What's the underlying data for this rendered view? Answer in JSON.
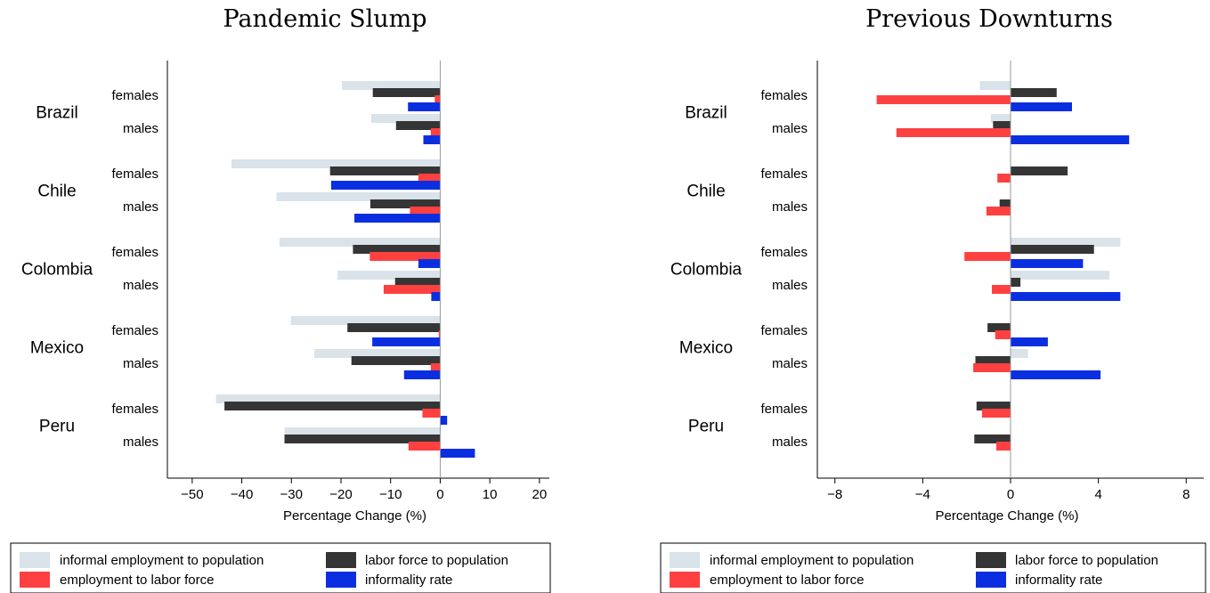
{
  "colors": {
    "informal_employment_to_population": "#d9e3e9",
    "labor_force_to_population": "#353535",
    "employment_to_labor_force": "#ff4040",
    "informality_rate": "#0b2fe0"
  },
  "chart_data": [
    {
      "type": "bar",
      "orientation": "horizontal",
      "title": "Pandemic Slump",
      "xlabel": "Percentage Change (%)",
      "xlim": [
        -55,
        22
      ],
      "xticks": [
        -50,
        -40,
        -30,
        -20,
        -10,
        0,
        10,
        20
      ],
      "tick_labels": [
        "−50",
        "−40",
        "−30",
        "−20",
        "−10",
        "0",
        "10",
        "20"
      ],
      "groups": [
        {
          "country": "Brazil",
          "rows": [
            {
              "label": "females",
              "values": [
                -19.8,
                -13.6,
                -1.1,
                -6.5
              ]
            },
            {
              "label": "males",
              "values": [
                -13.9,
                -8.9,
                -1.9,
                -3.4
              ]
            }
          ]
        },
        {
          "country": "Chile",
          "rows": [
            {
              "label": "females",
              "values": [
                -42.1,
                -22.2,
                -4.4,
                -22.0
              ]
            },
            {
              "label": "males",
              "values": [
                -33.0,
                -14.1,
                -6.1,
                -17.3
              ]
            }
          ]
        },
        {
          "country": "Colombia",
          "rows": [
            {
              "label": "females",
              "values": [
                -32.4,
                -17.6,
                -14.2,
                -4.4
              ]
            },
            {
              "label": "males",
              "values": [
                -20.7,
                -9.1,
                -11.4,
                -1.8
              ]
            }
          ]
        },
        {
          "country": "Mexico",
          "rows": [
            {
              "label": "females",
              "values": [
                -30.1,
                -18.7,
                -0.3,
                -13.7
              ]
            },
            {
              "label": "males",
              "values": [
                -25.4,
                -17.9,
                -1.9,
                -7.3
              ]
            }
          ]
        },
        {
          "country": "Peru",
          "rows": [
            {
              "label": "females",
              "values": [
                -45.2,
                -43.5,
                -3.6,
                1.4
              ]
            },
            {
              "label": "males",
              "values": [
                -31.4,
                -31.4,
                -6.4,
                7.0
              ]
            }
          ]
        }
      ],
      "series": [
        {
          "name": "informal employment to population"
        },
        {
          "name": "labor force to population"
        },
        {
          "name": "employment to labor force"
        },
        {
          "name": "informality rate"
        }
      ]
    },
    {
      "type": "bar",
      "orientation": "horizontal",
      "title": "Previous Downturns",
      "xlabel": "Percentage Change (%)",
      "xlim": [
        -8.8,
        8.8
      ],
      "xticks": [
        -8,
        -4,
        0,
        4,
        8
      ],
      "tick_labels": [
        "−8",
        "−4",
        "0",
        "4",
        "8"
      ],
      "groups": [
        {
          "country": "Brazil",
          "rows": [
            {
              "label": "females",
              "values": [
                -1.4,
                2.1,
                -6.1,
                2.8
              ]
            },
            {
              "label": "males",
              "values": [
                -0.9,
                -0.8,
                -5.2,
                5.4
              ]
            }
          ]
        },
        {
          "country": "Chile",
          "rows": [
            {
              "label": "females",
              "values": [
                0,
                2.6,
                -0.6,
                0
              ]
            },
            {
              "label": "males",
              "values": [
                0,
                -0.5,
                -1.1,
                0
              ]
            }
          ]
        },
        {
          "country": "Colombia",
          "rows": [
            {
              "label": "females",
              "values": [
                5.0,
                3.8,
                -2.1,
                3.3
              ]
            },
            {
              "label": "males",
              "values": [
                4.5,
                0.45,
                -0.85,
                5.0
              ]
            }
          ]
        },
        {
          "country": "Mexico",
          "rows": [
            {
              "label": "females",
              "values": [
                0,
                -1.05,
                -0.7,
                1.7
              ]
            },
            {
              "label": "males",
              "values": [
                0.8,
                -1.6,
                -1.7,
                4.1
              ]
            }
          ]
        },
        {
          "country": "Peru",
          "rows": [
            {
              "label": "females",
              "values": [
                0,
                -1.55,
                -1.3,
                0
              ]
            },
            {
              "label": "males",
              "values": [
                0,
                -1.65,
                -0.65,
                0
              ]
            }
          ]
        }
      ],
      "series": [
        {
          "name": "informal employment to population"
        },
        {
          "name": "labor force to population"
        },
        {
          "name": "employment to labor force"
        },
        {
          "name": "informality rate"
        }
      ]
    }
  ],
  "legend": {
    "position": "bottom",
    "items": [
      {
        "label": "informal employment to population",
        "color_key": "informal_employment_to_population"
      },
      {
        "label": "labor force to population",
        "color_key": "labor_force_to_population"
      },
      {
        "label": "employment to labor force",
        "color_key": "employment_to_labor_force"
      },
      {
        "label": "informality rate",
        "color_key": "informality_rate"
      }
    ]
  }
}
